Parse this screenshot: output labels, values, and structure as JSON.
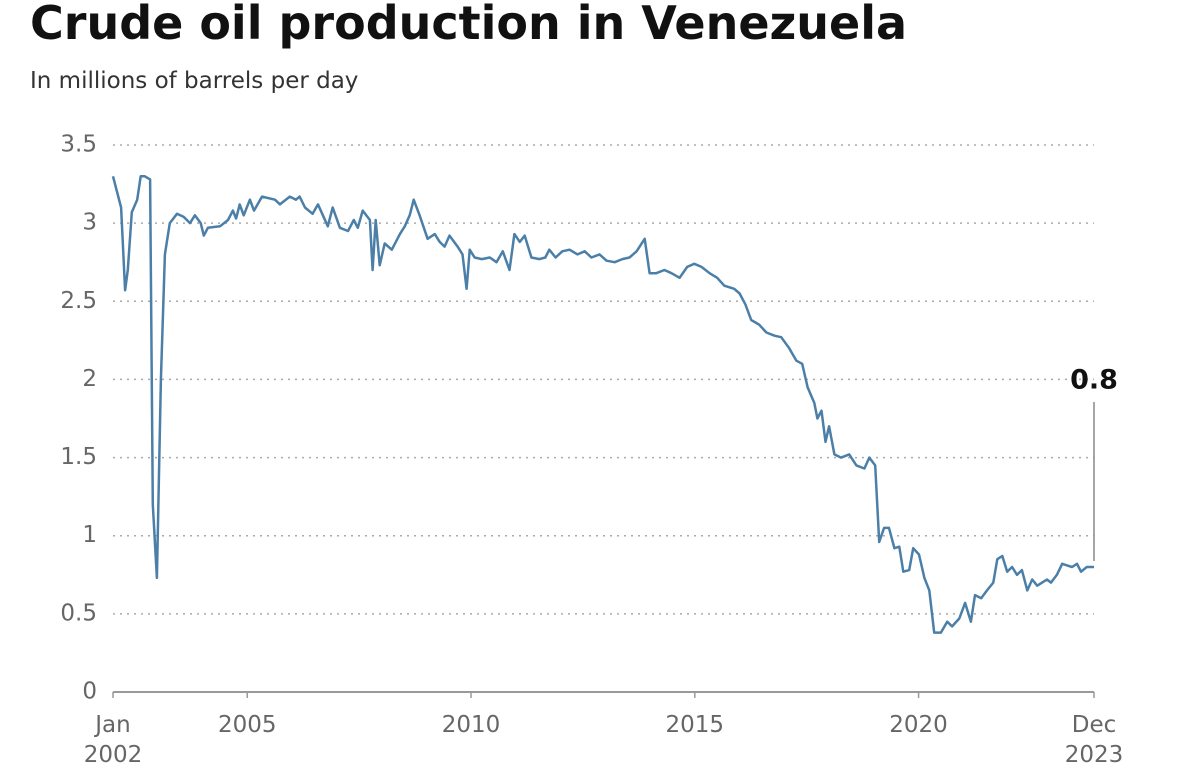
{
  "chart_data": {
    "type": "line",
    "title": "Crude oil production in Venezuela",
    "subtitle": "In millions of barrels per day",
    "color": "#4b7fa8",
    "grid": true,
    "xlim": [
      2002,
      2023.92
    ],
    "xticks": [
      {
        "value": 2002,
        "label": "Jan 2002"
      },
      2005,
      2010,
      2015,
      2020,
      {
        "value": 2023.92,
        "label": "Dec 2023"
      }
    ],
    "ylim": [
      0,
      3.5
    ],
    "yticks": [
      0,
      0.5,
      1,
      1.5,
      2,
      2.5,
      3,
      3.5
    ],
    "x": [
      2002.0,
      2002.18,
      2002.27,
      2002.33,
      2002.42,
      2002.54,
      2002.62,
      2002.71,
      2002.83,
      2002.89,
      2002.98,
      2003.07,
      2003.16,
      2003.27,
      2003.43,
      2003.58,
      2003.72,
      2003.83,
      2003.96,
      2004.03,
      2004.12,
      2004.39,
      2004.57,
      2004.68,
      2004.75,
      2004.83,
      2004.92,
      2005.06,
      2005.15,
      2005.33,
      2005.62,
      2005.73,
      2005.95,
      2006.09,
      2006.17,
      2006.29,
      2006.46,
      2006.58,
      2006.69,
      2006.8,
      2006.91,
      2007.07,
      2007.25,
      2007.38,
      2007.47,
      2007.58,
      2007.74,
      2007.8,
      2007.87,
      2007.96,
      2008.07,
      2008.23,
      2008.41,
      2008.52,
      2008.63,
      2008.72,
      2008.85,
      2009.03,
      2009.19,
      2009.3,
      2009.41,
      2009.52,
      2009.7,
      2009.81,
      2009.9,
      2009.97,
      2010.08,
      2010.24,
      2010.42,
      2010.57,
      2010.71,
      2010.86,
      2010.97,
      2011.09,
      2011.2,
      2011.35,
      2011.53,
      2011.66,
      2011.75,
      2011.89,
      2012.04,
      2012.2,
      2012.38,
      2012.54,
      2012.69,
      2012.87,
      2013.03,
      2013.21,
      2013.38,
      2013.54,
      2013.7,
      2013.88,
      2013.99,
      2014.14,
      2014.32,
      2014.48,
      2014.66,
      2014.83,
      2014.99,
      2015.15,
      2015.33,
      2015.5,
      2015.66,
      2015.88,
      2016.0,
      2016.13,
      2016.26,
      2016.44,
      2016.6,
      2016.78,
      2016.93,
      2017.11,
      2017.27,
      2017.4,
      2017.52,
      2017.67,
      2017.74,
      2017.83,
      2017.92,
      2018.0,
      2018.12,
      2018.27,
      2018.45,
      2018.61,
      2018.79,
      2018.9,
      2019.03,
      2019.12,
      2019.23,
      2019.34,
      2019.46,
      2019.57,
      2019.66,
      2019.79,
      2019.88,
      2020.01,
      2020.13,
      2020.24,
      2020.35,
      2020.5,
      2020.64,
      2020.75,
      2020.91,
      2021.04,
      2021.17,
      2021.26,
      2021.4,
      2021.53,
      2021.67,
      2021.76,
      2021.87,
      2021.98,
      2022.09,
      2022.2,
      2022.31,
      2022.43,
      2022.54,
      2022.65,
      2022.76,
      2022.87,
      2022.96,
      2023.09,
      2023.21,
      2023.32,
      2023.43,
      2023.54,
      2023.63,
      2023.76,
      2023.92
    ],
    "values": [
      3.3,
      3.1,
      2.57,
      2.7,
      3.07,
      3.15,
      3.3,
      3.3,
      3.28,
      1.2,
      0.73,
      2.0,
      2.8,
      3.0,
      3.06,
      3.04,
      3.0,
      3.05,
      3.0,
      2.92,
      2.97,
      2.98,
      3.02,
      3.08,
      3.03,
      3.12,
      3.05,
      3.15,
      3.08,
      3.17,
      3.15,
      3.12,
      3.17,
      3.15,
      3.17,
      3.1,
      3.06,
      3.12,
      3.05,
      2.98,
      3.1,
      2.97,
      2.95,
      3.02,
      2.97,
      3.08,
      3.02,
      2.7,
      3.02,
      2.73,
      2.87,
      2.83,
      2.93,
      2.98,
      3.05,
      3.15,
      3.05,
      2.9,
      2.93,
      2.88,
      2.85,
      2.92,
      2.85,
      2.8,
      2.58,
      2.83,
      2.78,
      2.77,
      2.78,
      2.75,
      2.82,
      2.7,
      2.93,
      2.88,
      2.92,
      2.78,
      2.77,
      2.78,
      2.83,
      2.78,
      2.82,
      2.83,
      2.8,
      2.82,
      2.78,
      2.8,
      2.76,
      2.75,
      2.77,
      2.78,
      2.82,
      2.9,
      2.68,
      2.68,
      2.7,
      2.68,
      2.65,
      2.72,
      2.74,
      2.72,
      2.68,
      2.65,
      2.6,
      2.58,
      2.55,
      2.48,
      2.38,
      2.35,
      2.3,
      2.28,
      2.27,
      2.2,
      2.12,
      2.1,
      1.95,
      1.85,
      1.75,
      1.8,
      1.6,
      1.7,
      1.52,
      1.5,
      1.52,
      1.45,
      1.43,
      1.5,
      1.45,
      0.96,
      1.05,
      1.05,
      0.92,
      0.93,
      0.77,
      0.78,
      0.92,
      0.88,
      0.73,
      0.65,
      0.38,
      0.38,
      0.45,
      0.42,
      0.47,
      0.57,
      0.45,
      0.62,
      0.6,
      0.65,
      0.7,
      0.85,
      0.87,
      0.77,
      0.8,
      0.75,
      0.78,
      0.65,
      0.72,
      0.68,
      0.7,
      0.72,
      0.7,
      0.75,
      0.82,
      0.81,
      0.8,
      0.82,
      0.77,
      0.8,
      0.8
    ]
  }
}
